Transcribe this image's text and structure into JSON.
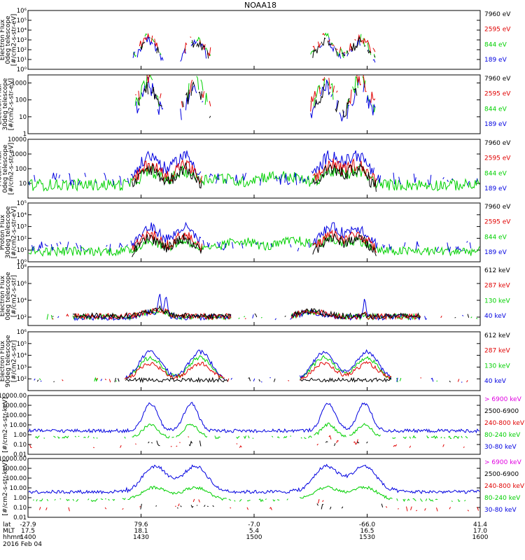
{
  "title": "NOAA18",
  "colors": {
    "red": "#e00000",
    "green": "#00d000",
    "blue": "#0000e0",
    "black": "#000000",
    "magenta": "#e000e0",
    "frame": "#000000"
  },
  "panels": [
    {
      "id": "ted-e-0",
      "ylabel": [
        "TED",
        "Electron Flux",
        "0deg telescope",
        "[#/cm2-s-str-eV]"
      ],
      "yscale": "log",
      "ylim": [
        1,
        1000000
      ],
      "ticks": [
        {
          "v": 1,
          "t": "10⁰"
        },
        {
          "v": 10,
          "t": "10¹"
        },
        {
          "v": 100,
          "t": "10²"
        },
        {
          "v": 1000,
          "t": "10³"
        },
        {
          "v": 10000,
          "t": "10⁴"
        },
        {
          "v": 100000,
          "t": "10⁵"
        },
        {
          "v": 1000000,
          "t": "10⁶"
        }
      ],
      "legend": [
        {
          "text": "7960 eV",
          "color": "black"
        },
        {
          "text": "2595 eV",
          "color": "red"
        },
        {
          "text": "844 eV",
          "color": "green"
        },
        {
          "text": "189 eV",
          "color": "blue"
        }
      ],
      "style": "sparse"
    },
    {
      "id": "ted-e-30",
      "ylabel": [
        "Electron Flux",
        "30deg telescope",
        "[#/cm2-s-str-eV]"
      ],
      "yscale": "log",
      "ylim": [
        1,
        3000
      ],
      "ticks": [
        {
          "v": 1,
          "t": "1"
        },
        {
          "v": 10,
          "t": "10"
        },
        {
          "v": 100,
          "t": "100"
        },
        {
          "v": 1000,
          "t": "1000"
        }
      ],
      "legend": [
        {
          "text": "7960 eV",
          "color": "black"
        },
        {
          "text": "2595 eV",
          "color": "red"
        },
        {
          "text": "844 eV",
          "color": "green"
        },
        {
          "text": "189 eV",
          "color": "blue"
        }
      ],
      "style": "sparse"
    },
    {
      "id": "ted-p-0",
      "ylabel": [
        "Proton Flux",
        "0deg telescope",
        "[#/cm2-s-str-eV]"
      ],
      "yscale": "log",
      "ylim": [
        1,
        10000
      ],
      "ticks": [
        {
          "v": 10,
          "t": "10"
        },
        {
          "v": 100,
          "t": "100"
        },
        {
          "v": 1000,
          "t": "1000"
        },
        {
          "v": 10000,
          "t": "10000"
        }
      ],
      "legend": [
        {
          "text": "7960 eV",
          "color": "black"
        },
        {
          "text": "2595 eV",
          "color": "red"
        },
        {
          "text": "844 eV",
          "color": "green"
        },
        {
          "text": "189 eV",
          "color": "blue"
        }
      ],
      "style": "proton"
    },
    {
      "id": "ted-p-30",
      "ylabel": [
        "TED",
        "Proton Flux",
        "30deg telescope",
        "[#/cm2-s-str-eV]"
      ],
      "yscale": "log",
      "ylim": [
        1,
        100000
      ],
      "ticks": [
        {
          "v": 1,
          "t": "10⁰"
        },
        {
          "v": 10,
          "t": "10¹"
        },
        {
          "v": 100,
          "t": "10²"
        },
        {
          "v": 1000,
          "t": "10³"
        },
        {
          "v": 10000,
          "t": "10⁴"
        },
        {
          "v": 100000,
          "t": "10⁵"
        }
      ],
      "legend": [
        {
          "text": "7960 eV",
          "color": "black"
        },
        {
          "text": "2595 eV",
          "color": "red"
        },
        {
          "text": "844 eV",
          "color": "green"
        },
        {
          "text": "189 eV",
          "color": "blue"
        }
      ],
      "style": "proton30"
    },
    {
      "id": "meped-e-0",
      "ylabel": [
        "MEPED",
        "Electron Flux",
        "0deg telescope",
        "[#/cm2-s-str]"
      ],
      "yscale": "log",
      "ylim": [
        10,
        100000000
      ],
      "ticks": [
        {
          "v": 100,
          "t": "10²"
        },
        {
          "v": 10000,
          "t": "10⁴"
        },
        {
          "v": 1000000,
          "t": "10⁶"
        },
        {
          "v": 100000000,
          "t": "10⁸"
        }
      ],
      "legend": [
        {
          "text": "612 keV",
          "color": "black"
        },
        {
          "text": "287 keV",
          "color": "red"
        },
        {
          "text": "130 keV",
          "color": "green"
        },
        {
          "text": "40 keV",
          "color": "blue"
        }
      ],
      "style": "meped0"
    },
    {
      "id": "meped-e-90",
      "ylabel": [
        "MEPED",
        "Electron Flux",
        "90deg telescope",
        "[#/cm2-s-str]"
      ],
      "yscale": "log",
      "ylim": [
        10,
        1000000
      ],
      "ticks": [
        {
          "v": 100,
          "t": "10²"
        },
        {
          "v": 1000,
          "t": "10³"
        },
        {
          "v": 10000,
          "t": "10⁴"
        },
        {
          "v": 100000,
          "t": "10⁵"
        },
        {
          "v": 1000000,
          "t": "10⁶"
        }
      ],
      "legend": [
        {
          "text": "612 keV",
          "color": "black"
        },
        {
          "text": "287 keV",
          "color": "red"
        },
        {
          "text": "130 keV",
          "color": "green"
        },
        {
          "text": "40 keV",
          "color": "blue"
        }
      ],
      "style": "meped90"
    },
    {
      "id": "meped-p-0",
      "ylabel": [
        "[#/cm2-s-str-keV]"
      ],
      "yscale": "log",
      "ylim": [
        0.01,
        10000
      ],
      "ticks": [
        {
          "v": 0.01,
          "t": "0.01"
        },
        {
          "v": 0.1,
          "t": "0.10"
        },
        {
          "v": 1,
          "t": "1.00"
        },
        {
          "v": 10,
          "t": "10.00"
        },
        {
          "v": 100,
          "t": "100.00"
        },
        {
          "v": 1000,
          "t": "1000.00"
        },
        {
          "v": 10000,
          "t": "10000.00"
        }
      ],
      "legend": [
        {
          "text": "> 6900 keV",
          "color": "magenta"
        },
        {
          "text": "2500-6900",
          "color": "black"
        },
        {
          "text": "240-800 keV",
          "color": "red"
        },
        {
          "text": "80-240 keV",
          "color": "green"
        },
        {
          "text": "30-80 keV",
          "color": "blue"
        }
      ],
      "style": "protonA"
    },
    {
      "id": "meped-p-90",
      "ylabel": [
        "[#/cm2-s-str-keV]"
      ],
      "yscale": "log",
      "ylim": [
        0.01,
        10000
      ],
      "ticks": [
        {
          "v": 0.01,
          "t": "0.01"
        },
        {
          "v": 0.1,
          "t": "0.10"
        },
        {
          "v": 1,
          "t": "1.00"
        },
        {
          "v": 10,
          "t": "10.00"
        },
        {
          "v": 100,
          "t": "100.00"
        },
        {
          "v": 1000,
          "t": "1000.00"
        },
        {
          "v": 10000,
          "t": "10000.00"
        }
      ],
      "legend": [
        {
          "text": "> 6900 keV",
          "color": "magenta"
        },
        {
          "text": "2500-6900",
          "color": "black"
        },
        {
          "text": "240-800 keV",
          "color": "red"
        },
        {
          "text": "80-240 keV",
          "color": "green"
        },
        {
          "text": "30-80 keV",
          "color": "blue"
        }
      ],
      "style": "protonB"
    }
  ],
  "chart_data": {
    "type": "line",
    "title": "NOAA18",
    "x_axis": {
      "row_labels": [
        "lat",
        "MLT",
        "hhmm"
      ],
      "columns": [
        {
          "lat": "-27.9",
          "mlt": "17.5",
          "hhmm": "1400"
        },
        {
          "lat": "79.6",
          "mlt": "18.1",
          "hhmm": "1430"
        },
        {
          "lat": "-7.0",
          "mlt": "5.4",
          "hhmm": "1500"
        },
        {
          "lat": "-66.0",
          "mlt": "16.5",
          "hhmm": "1530"
        },
        {
          "lat": "41.4",
          "mlt": "17.0",
          "hhmm": "1600"
        }
      ]
    },
    "date": "2016 Feb 04",
    "series_note": "per-panel channel colors listed in panels[].legend"
  }
}
